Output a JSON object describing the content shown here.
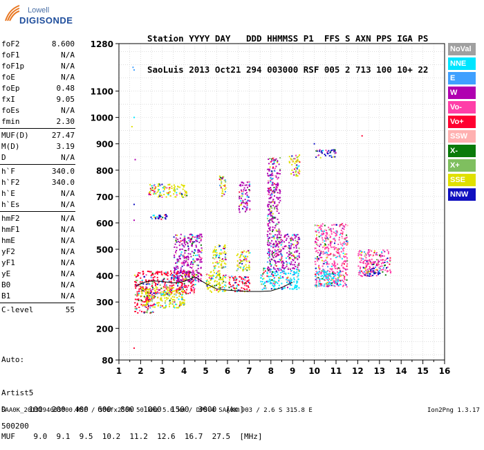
{
  "logo": {
    "line1": "Lowell",
    "line2": "DIGISONDE"
  },
  "header": {
    "labels": "Station YYYY DAY   DDD HHMMSS P1  FFS S AXN PPS IGA PS",
    "values": "SaoLuis 2013 Oct21 294 003000 RSF 005 2 713 100 10+ 22"
  },
  "parameters": [
    {
      "name": "foF2",
      "value": "8.600"
    },
    {
      "name": "foF1",
      "value": "N/A"
    },
    {
      "name": "foF1p",
      "value": "N/A"
    },
    {
      "name": "foE",
      "value": "N/A"
    },
    {
      "name": "foEp",
      "value": "0.48"
    },
    {
      "name": "fxI",
      "value": "9.05"
    },
    {
      "name": "foEs",
      "value": "N/A"
    },
    {
      "name": "fmin",
      "value": "2.30"
    },
    {
      "name": "MUF(D)",
      "value": "27.47"
    },
    {
      "name": "M(D)",
      "value": "3.19"
    },
    {
      "name": "D",
      "value": "N/A"
    },
    {
      "name": "h`F",
      "value": "340.0"
    },
    {
      "name": "h`F2",
      "value": "340.0"
    },
    {
      "name": "h`E",
      "value": "N/A"
    },
    {
      "name": "h`Es",
      "value": "N/A"
    },
    {
      "name": "hmF2",
      "value": "N/A"
    },
    {
      "name": "hmF1",
      "value": "N/A"
    },
    {
      "name": "hmE",
      "value": "N/A"
    },
    {
      "name": "yF2",
      "value": "N/A"
    },
    {
      "name": "yF1",
      "value": "N/A"
    },
    {
      "name": "yE",
      "value": "N/A"
    },
    {
      "name": "B0",
      "value": "N/A"
    },
    {
      "name": "B1",
      "value": "N/A"
    },
    {
      "name": "C-level",
      "value": "55"
    }
  ],
  "auto": {
    "line1": "Auto:",
    "line2": "Artist5",
    "line3": "500200"
  },
  "footer": {
    "d_row": "D     100  200  400  600  800  1000  1500  3000  [km]",
    "muf_row": "MUF    9.0  9.1  9.5  10.2  11.2  12.6  16.7  27.5  [MHz]",
    "info": "SAA0K_2013294003000.RSF / 300fx256h 50 kHz 5.0 km / DPS-4 SAA0K 903 / 2.6 S 315.8 E",
    "version": "Ion2Png 1.3.17"
  },
  "legend": [
    {
      "label": "NoVal",
      "color": "#a0a0a0"
    },
    {
      "label": "NNE",
      "color": "#00e5ff"
    },
    {
      "label": "E",
      "color": "#3fa0ff"
    },
    {
      "label": "W",
      "color": "#b000b0"
    },
    {
      "label": "Vo-",
      "color": "#ff3fa8"
    },
    {
      "label": "Vo+",
      "color": "#ff0030"
    },
    {
      "label": "SSW",
      "color": "#ffb0b0"
    },
    {
      "label": "X-",
      "color": "#0a7a0a"
    },
    {
      "label": "X+",
      "color": "#7fbf5f"
    },
    {
      "label": "SSE",
      "color": "#e0e000"
    },
    {
      "label": "NNW",
      "color": "#1010c0"
    }
  ],
  "chart_data": {
    "type": "scatter",
    "title": "",
    "xlabel": "",
    "ylabel": "",
    "xlim": [
      1,
      16
    ],
    "ylim": [
      80,
      1280
    ],
    "x_ticks": [
      1,
      2,
      3,
      4,
      5,
      6,
      7,
      8,
      9,
      10,
      11,
      12,
      13,
      14,
      15,
      16
    ],
    "y_ticks": [
      80,
      200,
      300,
      400,
      500,
      600,
      700,
      800,
      900,
      1000,
      1100,
      1280
    ],
    "grid": true,
    "legend_position": "right",
    "trace": {
      "name": "",
      "x": [
        1.8,
        2.0,
        2.3,
        2.6,
        3.0,
        3.5,
        4.0,
        4.5,
        5.0,
        5.5,
        6.0,
        6.5,
        7.0,
        7.5,
        8.0,
        8.5,
        9.0
      ],
      "y": [
        360,
        370,
        378,
        380,
        378,
        372,
        378,
        395,
        370,
        350,
        345,
        342,
        340,
        340,
        342,
        355,
        375
      ]
    },
    "echo_regions": [
      {
        "x": [
          1.7,
          2.6
        ],
        "y": [
          260,
          420
        ],
        "color": "#ff0030"
      },
      {
        "x": [
          2.6,
          4.5
        ],
        "y": [
          330,
          420
        ],
        "color": "#ff0030"
      },
      {
        "x": [
          2.0,
          4.0
        ],
        "y": [
          280,
          360
        ],
        "color": "#e0e000"
      },
      {
        "x": [
          3.5,
          4.8
        ],
        "y": [
          380,
          560
        ],
        "color": "#b000b0"
      },
      {
        "x": [
          2.3,
          4.1
        ],
        "y": [
          700,
          750
        ],
        "color": "#e0e000"
      },
      {
        "x": [
          2.4,
          3.2
        ],
        "y": [
          615,
          635
        ],
        "color": "#1010c0"
      },
      {
        "x": [
          5.0,
          5.9
        ],
        "y": [
          340,
          420
        ],
        "color": "#e0e000"
      },
      {
        "x": [
          5.3,
          5.9
        ],
        "y": [
          420,
          520
        ],
        "color": "#e0e000"
      },
      {
        "x": [
          5.6,
          5.9
        ],
        "y": [
          700,
          780
        ],
        "color": "#e0e000"
      },
      {
        "x": [
          6.0,
          7.0
        ],
        "y": [
          340,
          400
        ],
        "color": "#ff0030"
      },
      {
        "x": [
          6.4,
          7.0
        ],
        "y": [
          420,
          500
        ],
        "color": "#e0e000"
      },
      {
        "x": [
          6.5,
          7.0
        ],
        "y": [
          640,
          760
        ],
        "color": "#b000b0"
      },
      {
        "x": [
          7.5,
          9.3
        ],
        "y": [
          350,
          430
        ],
        "color": "#00e5ff"
      },
      {
        "x": [
          7.8,
          9.3
        ],
        "y": [
          420,
          560
        ],
        "color": "#b000b0"
      },
      {
        "x": [
          7.8,
          8.4
        ],
        "y": [
          560,
          850
        ],
        "color": "#b000b0"
      },
      {
        "x": [
          8.8,
          9.3
        ],
        "y": [
          780,
          860
        ],
        "color": "#e0e000"
      },
      {
        "x": [
          10.0,
          11.5
        ],
        "y": [
          360,
          600
        ],
        "color": "#ff3fa8"
      },
      {
        "x": [
          10.0,
          11.2
        ],
        "y": [
          360,
          420
        ],
        "color": "#00e5ff"
      },
      {
        "x": [
          10.0,
          11.0
        ],
        "y": [
          850,
          880
        ],
        "color": "#1010c0"
      },
      {
        "x": [
          12.0,
          13.5
        ],
        "y": [
          400,
          500
        ],
        "color": "#ff3fa8"
      },
      {
        "x": [
          12.3,
          13.0
        ],
        "y": [
          400,
          430
        ],
        "color": "#1010c0"
      }
    ],
    "isolated_points": [
      {
        "x": 1.65,
        "y": 1190,
        "color": "#3fa0ff"
      },
      {
        "x": 1.7,
        "y": 1180,
        "color": "#3fa0ff"
      },
      {
        "x": 1.6,
        "y": 965,
        "color": "#e0e000"
      },
      {
        "x": 1.7,
        "y": 1000,
        "color": "#00e5ff"
      },
      {
        "x": 1.75,
        "y": 840,
        "color": "#b000b0"
      },
      {
        "x": 1.7,
        "y": 670,
        "color": "#1010c0"
      },
      {
        "x": 1.7,
        "y": 610,
        "color": "#b000b0"
      },
      {
        "x": 1.7,
        "y": 125,
        "color": "#ff0030"
      },
      {
        "x": 12.2,
        "y": 930,
        "color": "#ff0030"
      },
      {
        "x": 10.0,
        "y": 900,
        "color": "#1010c0"
      }
    ]
  }
}
